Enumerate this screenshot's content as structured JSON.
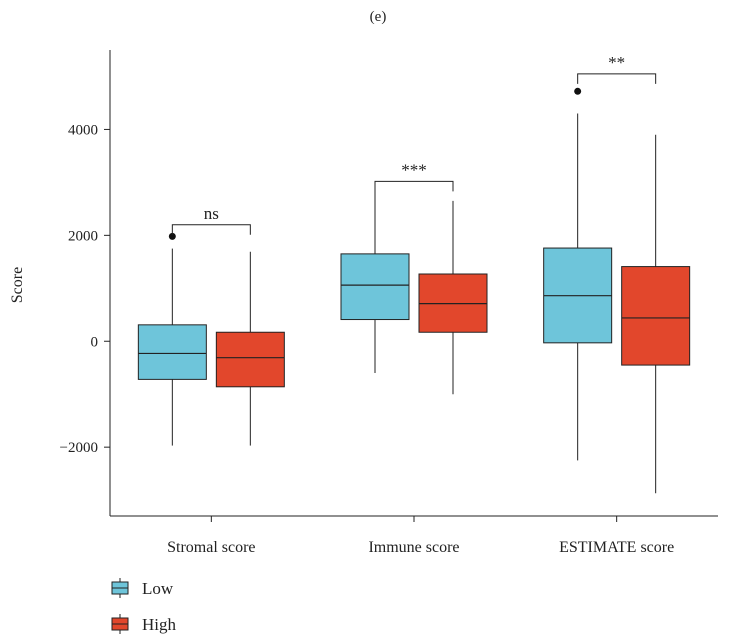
{
  "chart_data": {
    "type": "box",
    "panel_label": "(e)",
    "ylabel": "Score",
    "ylim": [
      -3300,
      5500
    ],
    "yticks": [
      -2000,
      0,
      2000,
      4000
    ],
    "ytick_labels": [
      "−2000",
      "0",
      "2000",
      "4000"
    ],
    "categories": [
      "Stromal score",
      "Immune score",
      "ESTIMATE score"
    ],
    "series": [
      {
        "name": "Low",
        "color": "#6EC5DA",
        "boxes": [
          {
            "whisker_low": -1970,
            "q1": -720,
            "median": -230,
            "q3": 310,
            "whisker_high": 1750,
            "outliers": [
              1980
            ]
          },
          {
            "whisker_low": -600,
            "q1": 410,
            "median": 1060,
            "q3": 1650,
            "whisker_high": 2850,
            "outliers": []
          },
          {
            "whisker_low": -2250,
            "q1": -30,
            "median": 860,
            "q3": 1760,
            "whisker_high": 4300,
            "outliers": [
              4720
            ]
          }
        ]
      },
      {
        "name": "High",
        "color": "#E2472C",
        "boxes": [
          {
            "whisker_low": -1970,
            "q1": -860,
            "median": -310,
            "q3": 170,
            "whisker_high": 1690,
            "outliers": []
          },
          {
            "whisker_low": -1000,
            "q1": 170,
            "median": 710,
            "q3": 1270,
            "whisker_high": 2650,
            "outliers": []
          },
          {
            "whisker_low": -2870,
            "q1": -450,
            "median": 440,
            "q3": 1410,
            "whisker_high": 3900,
            "outliers": []
          }
        ]
      }
    ],
    "significance": [
      {
        "category": "Stromal score",
        "label": "ns",
        "y": 2200
      },
      {
        "category": "Immune score",
        "label": "***",
        "y": 3020
      },
      {
        "category": "ESTIMATE score",
        "label": "**",
        "y": 5050
      }
    ],
    "legend": {
      "position": "bottom-left",
      "entries": [
        "Low",
        "High"
      ]
    }
  }
}
